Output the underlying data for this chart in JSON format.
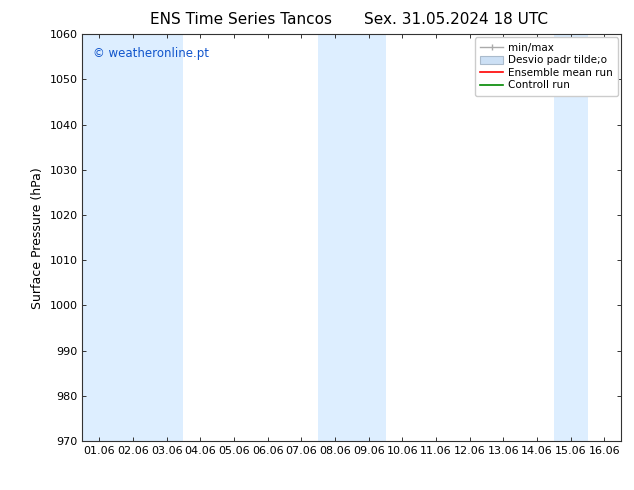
{
  "title_left": "ENS Time Series Tancos",
  "title_right": "Sex. 31.05.2024 18 UTC",
  "ylabel": "Surface Pressure (hPa)",
  "ylim": [
    970,
    1060
  ],
  "yticks": [
    970,
    980,
    990,
    1000,
    1010,
    1020,
    1030,
    1040,
    1050,
    1060
  ],
  "xtick_labels": [
    "01.06",
    "02.06",
    "03.06",
    "04.06",
    "05.06",
    "06.06",
    "07.06",
    "08.06",
    "09.06",
    "10.06",
    "11.06",
    "12.06",
    "13.06",
    "14.06",
    "15.06",
    "16.06"
  ],
  "watermark": "© weatheronline.pt",
  "watermark_color": "#1155cc",
  "bg_color": "#ffffff",
  "plot_bg_color": "#ffffff",
  "shaded_bands_x": [
    0,
    1,
    2,
    7,
    8,
    14
  ],
  "shaded_color": "#ddeeff",
  "title_fontsize": 11,
  "tick_fontsize": 8,
  "label_fontsize": 9,
  "legend_fontsize": 7.5,
  "minmax_color": "#aaaaaa",
  "desvio_facecolor": "#cce0f5",
  "desvio_edgecolor": "#aabbcc",
  "ensemble_color": "#ff0000",
  "control_color": "#008800"
}
